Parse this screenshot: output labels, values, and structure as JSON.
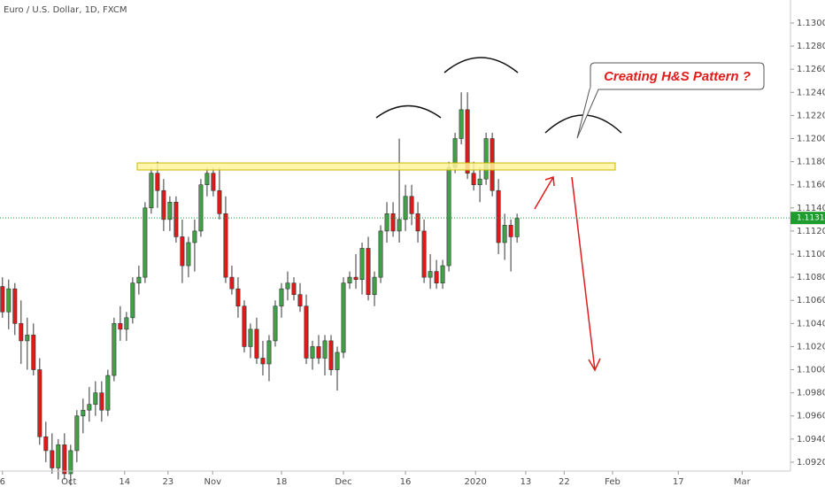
{
  "chart_data": {
    "type": "candlestick",
    "title": "Euro / U.S. Dollar, 1D, FXCM",
    "annotation": "Creating H&S Pattern ?",
    "up_color": "#43a047",
    "down_color": "#e01a1a",
    "last_price": 1.11313,
    "last_price_color": "#1e9c2e",
    "xlim": [
      -0.4,
      127.1
    ],
    "xticks": [
      {
        "value": 0,
        "label": "6"
      },
      {
        "value": 10.7,
        "label": "Oct"
      },
      {
        "value": 19.7,
        "label": "14"
      },
      {
        "value": 26.7,
        "label": "23"
      },
      {
        "value": 33.9,
        "label": "Nov"
      },
      {
        "value": 45,
        "label": "18"
      },
      {
        "value": 55,
        "label": "Dec"
      },
      {
        "value": 65,
        "label": "16"
      },
      {
        "value": 76.3,
        "label": "2020"
      },
      {
        "value": 84.4,
        "label": "13"
      },
      {
        "value": 90.6,
        "label": "22"
      },
      {
        "value": 98.4,
        "label": "Feb"
      },
      {
        "value": 109,
        "label": "17"
      },
      {
        "value": 119.3,
        "label": "Mar"
      }
    ],
    "ylim": [
      1.09123,
      1.13199
    ],
    "yticks": [
      {
        "value": 1.092,
        "label": "1.09200"
      },
      {
        "value": 1.094,
        "label": "1.09400"
      },
      {
        "value": 1.096,
        "label": "1.09600"
      },
      {
        "value": 1.098,
        "label": "1.09800"
      },
      {
        "value": 1.1,
        "label": "1.10000"
      },
      {
        "value": 1.102,
        "label": "1.10200"
      },
      {
        "value": 1.104,
        "label": "1.10400"
      },
      {
        "value": 1.106,
        "label": "1.10600"
      },
      {
        "value": 1.108,
        "label": "1.10800"
      },
      {
        "value": 1.11,
        "label": "1.11000"
      },
      {
        "value": 1.112,
        "label": "1.11200"
      },
      {
        "value": 1.114,
        "label": "1.11400"
      },
      {
        "value": 1.116,
        "label": "1.11600"
      },
      {
        "value": 1.118,
        "label": "1.11800"
      },
      {
        "value": 1.12,
        "label": "1.12000"
      },
      {
        "value": 1.122,
        "label": "1.12200"
      },
      {
        "value": 1.124,
        "label": "1.12400"
      },
      {
        "value": 1.126,
        "label": "1.12600"
      },
      {
        "value": 1.128,
        "label": "1.12800"
      },
      {
        "value": 1.13,
        "label": "1.13000"
      }
    ],
    "open": [
      1.1072,
      1.105,
      1.107,
      1.104,
      1.1025,
      1.103,
      1.1,
      1.0942,
      1.093,
      1.0915,
      1.0935,
      1.091,
      1.093,
      1.096,
      1.0965,
      1.097,
      1.098,
      1.0965,
      1.0995,
      1.104,
      1.1035,
      1.1045,
      1.1075,
      1.108,
      1.114,
      1.117,
      1.1155,
      1.113,
      1.1145,
      1.1115,
      1.109,
      1.111,
      1.112,
      1.116,
      1.117,
      1.1155,
      1.1135,
      1.108,
      1.107,
      1.1055,
      1.102,
      1.1035,
      1.101,
      1.1005,
      1.1025,
      1.1055,
      1.107,
      1.1075,
      1.1065,
      1.1055,
      1.101,
      1.102,
      1.101,
      1.1025,
      1.1,
      1.1015,
      1.1075,
      1.108,
      1.1078,
      1.1105,
      1.1065,
      1.108,
      1.112,
      1.1135,
      1.112,
      1.113,
      1.115,
      1.1135,
      1.112,
      1.108,
      1.1085,
      1.1075,
      1.109,
      1.1175,
      1.12,
      1.1225,
      1.117,
      1.116,
      1.1165,
      1.12,
      1.1155,
      1.111,
      1.1125,
      1.1115
    ],
    "high": [
      1.108,
      1.1078,
      1.1075,
      1.106,
      1.1045,
      1.104,
      1.101,
      1.0955,
      1.0945,
      1.094,
      1.0945,
      1.0935,
      1.0965,
      1.0975,
      1.0985,
      1.099,
      1.099,
      1.1,
      1.1045,
      1.1055,
      1.105,
      1.108,
      1.109,
      1.1145,
      1.1175,
      1.118,
      1.1165,
      1.115,
      1.115,
      1.113,
      1.1115,
      1.113,
      1.1165,
      1.1175,
      1.1175,
      1.1175,
      1.115,
      1.109,
      1.108,
      1.106,
      1.104,
      1.1045,
      1.1025,
      1.103,
      1.106,
      1.1075,
      1.1085,
      1.108,
      1.1075,
      1.1065,
      1.1025,
      1.103,
      1.103,
      1.103,
      1.102,
      1.108,
      1.1085,
      1.11,
      1.111,
      1.1115,
      1.1085,
      1.1125,
      1.1145,
      1.1145,
      1.12,
      1.116,
      1.116,
      1.1145,
      1.113,
      1.11,
      1.1095,
      1.1095,
      1.118,
      1.1205,
      1.124,
      1.124,
      1.118,
      1.1175,
      1.1205,
      1.1205,
      1.1165,
      1.1135,
      1.113,
      1.1135
    ],
    "low": [
      1.1045,
      1.1035,
      1.103,
      1.1005,
      1.1,
      1.0995,
      1.0935,
      1.092,
      1.091,
      1.0905,
      1.0905,
      1.09,
      1.092,
      1.0945,
      1.0955,
      1.096,
      1.0955,
      1.096,
      1.099,
      1.1025,
      1.1025,
      1.104,
      1.1065,
      1.1075,
      1.1135,
      1.114,
      1.112,
      1.112,
      1.111,
      1.1075,
      1.108,
      1.1085,
      1.1115,
      1.115,
      1.115,
      1.113,
      1.1075,
      1.1065,
      1.1045,
      1.1015,
      1.101,
      1.1005,
      1.0995,
      1.099,
      1.102,
      1.1045,
      1.106,
      1.106,
      1.105,
      1.1005,
      1.1,
      1.1005,
      1.0995,
      1.0995,
      1.0982,
      1.101,
      1.107,
      1.107,
      1.1065,
      1.106,
      1.1055,
      1.1075,
      1.111,
      1.1115,
      1.111,
      1.112,
      1.1125,
      1.111,
      1.1075,
      1.107,
      1.107,
      1.107,
      1.1085,
      1.117,
      1.1195,
      1.1165,
      1.1155,
      1.1145,
      1.116,
      1.115,
      1.11,
      1.1095,
      1.1085,
      1.111
    ],
    "close": [
      1.105,
      1.107,
      1.104,
      1.1025,
      1.103,
      1.1,
      1.0942,
      1.093,
      1.0915,
      1.0935,
      1.091,
      1.093,
      1.096,
      1.0965,
      1.097,
      1.098,
      1.0965,
      1.0995,
      1.104,
      1.1035,
      1.1045,
      1.1075,
      1.108,
      1.114,
      1.117,
      1.1155,
      1.113,
      1.1145,
      1.1115,
      1.109,
      1.111,
      1.112,
      1.116,
      1.117,
      1.1155,
      1.1135,
      1.108,
      1.107,
      1.1055,
      1.102,
      1.1035,
      1.101,
      1.1005,
      1.1025,
      1.1055,
      1.107,
      1.1075,
      1.1065,
      1.1055,
      1.101,
      1.102,
      1.101,
      1.1025,
      1.1,
      1.1015,
      1.1075,
      1.108,
      1.1078,
      1.1105,
      1.1065,
      1.108,
      1.112,
      1.1135,
      1.112,
      1.113,
      1.115,
      1.1135,
      1.112,
      1.108,
      1.1085,
      1.1075,
      1.109,
      1.1175,
      1.12,
      1.1225,
      1.117,
      1.116,
      1.1165,
      1.12,
      1.1155,
      1.111,
      1.1125,
      1.1115,
      1.1131
    ]
  }
}
